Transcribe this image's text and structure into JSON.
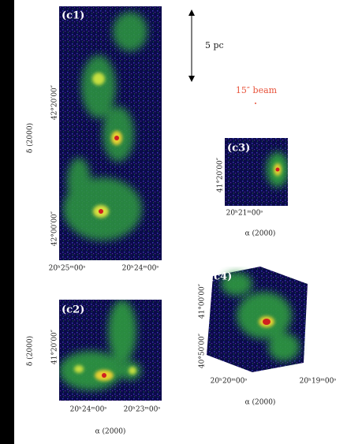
{
  "scale_bar": "5 pc",
  "beam": "15″ beam",
  "panels": [
    {
      "label": "(c1)",
      "ylabel": "δ (2000)",
      "yticks": [
        "42°20′00″",
        "42°00′00″"
      ],
      "xticks": [
        "20ʰ25ᵐ00ˢ",
        "20ʰ24ᵐ00ˢ"
      ]
    },
    {
      "label": "(c2)",
      "ylabel": "δ (2000)",
      "yticks": [
        "41°20′00″"
      ],
      "xticks": [
        "20ʰ24ᵐ00ˢ",
        "20ʰ23ᵐ00ˢ"
      ],
      "xlabel": "α (2000)"
    },
    {
      "label": "(c3)",
      "yticks": [
        "41°20′00″"
      ],
      "xticks": [
        "20ʰ21ᵐ00ˢ"
      ],
      "xlabel": "α (2000)"
    },
    {
      "label": "(c4)",
      "yticks": [
        "41°00′00″",
        "40°50′00″"
      ],
      "xticks": [
        "20ʰ20ᵐ00ˢ",
        "20ʰ19ᵐ00ˢ"
      ],
      "xlabel": "α (2000)"
    }
  ]
}
